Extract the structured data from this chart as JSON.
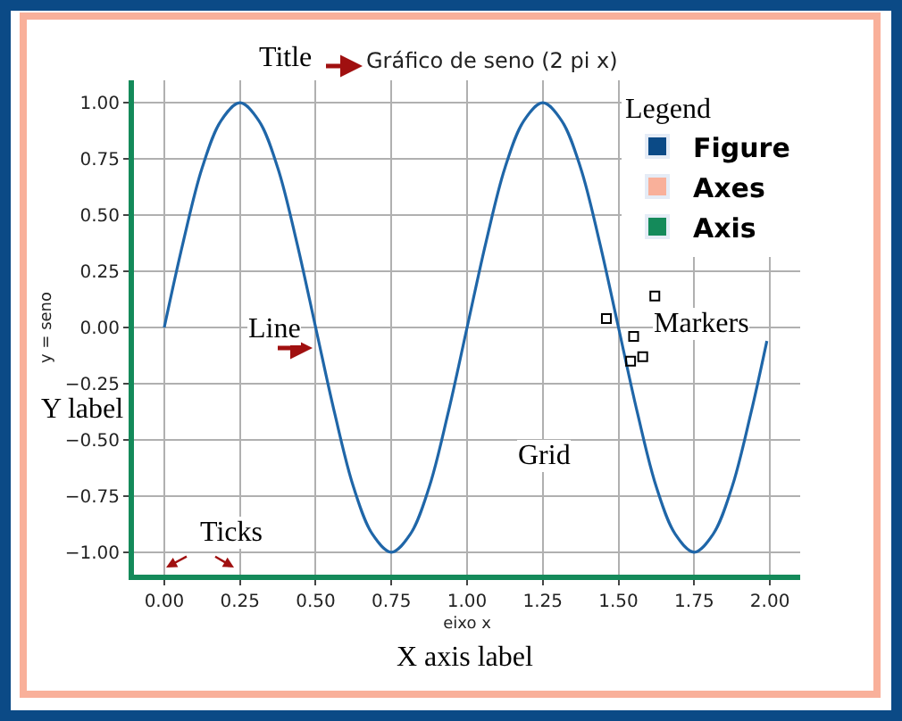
{
  "chart_data": {
    "type": "line",
    "title": "Gráfico de seno (2 pi x)",
    "xlabel": "eixo x",
    "ylabel": "y = seno",
    "legend_title": "Legend",
    "annotations": [
      "Title",
      "Line",
      "Markers",
      "Grid",
      "Ticks",
      "Y label",
      "X axis label"
    ],
    "xlim": [
      -0.1,
      2.1
    ],
    "ylim": [
      -1.1,
      1.1
    ],
    "xticks": [
      {
        "value": 0,
        "label": "0.00"
      },
      {
        "value": 0.25,
        "label": "0.25"
      },
      {
        "value": 0.5,
        "label": "0.50"
      },
      {
        "value": 0.75,
        "label": "0.75"
      },
      {
        "value": 1,
        "label": "1.00"
      },
      {
        "value": 1.25,
        "label": "1.25"
      },
      {
        "value": 1.5,
        "label": "1.50"
      },
      {
        "value": 1.75,
        "label": "1.75"
      },
      {
        "value": 2,
        "label": "2.00"
      }
    ],
    "yticks": [
      {
        "value": -1,
        "label": "−1.00"
      },
      {
        "value": -0.75,
        "label": "−0.75"
      },
      {
        "value": -0.5,
        "label": "−0.50"
      },
      {
        "value": -0.25,
        "label": "−0.25"
      },
      {
        "value": 0,
        "label": "0.00"
      },
      {
        "value": 0.25,
        "label": "0.25"
      },
      {
        "value": 0.5,
        "label": "0.50"
      },
      {
        "value": 0.75,
        "label": "0.75"
      },
      {
        "value": 1,
        "label": "1.00"
      }
    ],
    "grid": true,
    "legend": "top right",
    "series": [
      {
        "color": "#1f66a8",
        "line_style": "solid",
        "x": [
          0,
          0.0625,
          0.125,
          0.1875,
          0.25,
          0.3125,
          0.375,
          0.4375,
          0.5,
          0.5625,
          0.625,
          0.6875,
          0.75,
          0.8125,
          0.875,
          0.9375,
          1,
          1.0625,
          1.125,
          1.1875,
          1.25,
          1.3125,
          1.375,
          1.4375,
          1.5,
          1.5625,
          1.625,
          1.6875,
          1.75,
          1.8125,
          1.875,
          1.9375,
          1.99
        ],
        "values": [
          0,
          0.38,
          0.71,
          0.92,
          1,
          0.92,
          0.71,
          0.38,
          0,
          -0.38,
          -0.71,
          -0.92,
          -1,
          -0.92,
          -0.71,
          -0.38,
          0,
          0.38,
          0.71,
          0.92,
          1,
          0.92,
          0.71,
          0.38,
          0,
          -0.38,
          -0.71,
          -0.92,
          -1,
          -0.92,
          -0.71,
          -0.38,
          -0.06
        ]
      },
      {
        "type": "scatter",
        "color": "#000000",
        "marker": "square",
        "x": [
          1.46,
          1.55,
          1.54,
          1.58,
          1.62
        ],
        "values": [
          0.04,
          -0.04,
          -0.15,
          -0.13,
          0.14
        ]
      },
      {
        "type": "bar",
        "name": "Figure",
        "color": "#0b4a86"
      },
      {
        "type": "bar",
        "name": "Axes",
        "color": "#f9b09a"
      },
      {
        "type": "bar",
        "name": "Axis",
        "color": "#148a5a"
      }
    ]
  }
}
